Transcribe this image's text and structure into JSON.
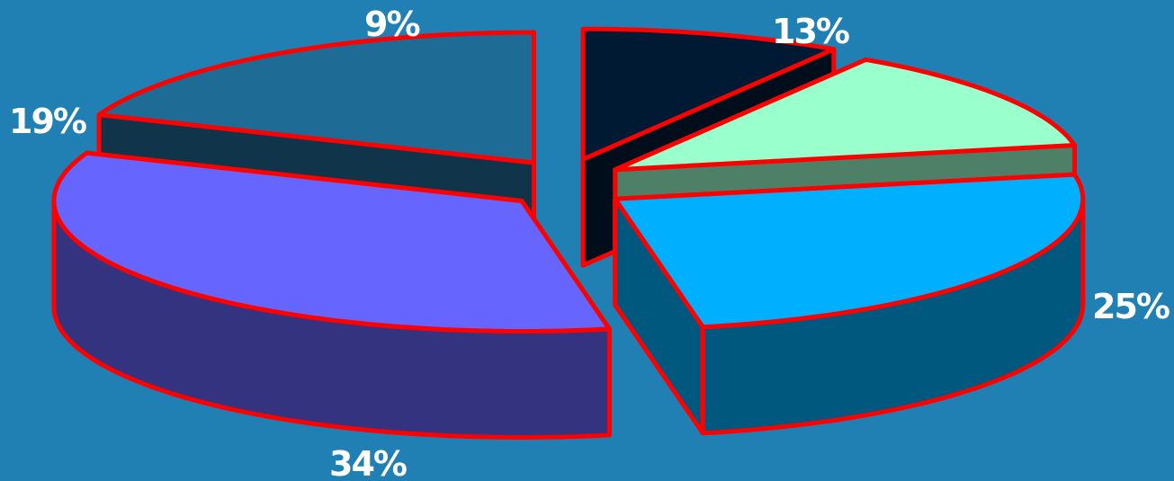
{
  "chart_data": {
    "type": "pie",
    "style": "3d-exploded",
    "background_color": "#2080b4",
    "outline_color": "#ff0000",
    "slices": [
      {
        "label": "9%",
        "value": 9,
        "top_color": "#001a33",
        "side_color": "#000d1a"
      },
      {
        "label": "13%",
        "value": 13,
        "top_color": "#99ffcc",
        "side_color": "#4d8066"
      },
      {
        "label": "25%",
        "value": 25,
        "top_color": "#00b0ff",
        "side_color": "#00587f"
      },
      {
        "label": "34%",
        "value": 34,
        "top_color": "#6666ff",
        "side_color": "#333380"
      },
      {
        "label": "19%",
        "value": 19,
        "top_color": "#1e6b96",
        "side_color": "#10354b"
      }
    ]
  }
}
